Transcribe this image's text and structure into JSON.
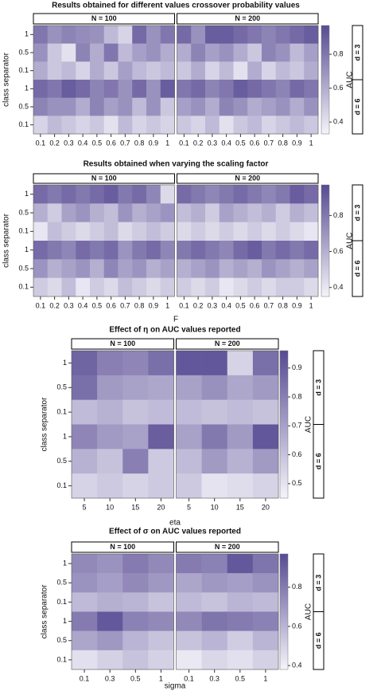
{
  "chart_data": [
    {
      "type": "heatmap",
      "title": "Results obtained for different values crossover probability values",
      "y_label": "class separator",
      "categories": [
        "0.1",
        "0.2",
        "0.3",
        "0.4",
        "0.5",
        "0.6",
        "0.7",
        "0.8",
        "0.9",
        "1"
      ],
      "rows": [
        "1",
        "0.5",
        "0.1",
        "1",
        "0.5",
        "0.1"
      ],
      "row_groups": [
        "d = 3",
        "d = 6"
      ],
      "colorbar_label": "AUC",
      "zlim": [
        0.33,
        0.97
      ],
      "zticks": [
        0.4,
        0.6,
        0.8
      ],
      "colors": [
        "#f5f4fa",
        "#574a93"
      ],
      "facets": [
        {
          "name": "N = 100",
          "values": [
            [
              0.8,
              0.7,
              0.75,
              0.72,
              0.7,
              0.55,
              0.45,
              0.85,
              0.7,
              0.8
            ],
            [
              0.7,
              0.5,
              0.4,
              0.75,
              0.6,
              0.8,
              0.55,
              0.65,
              0.7,
              0.6
            ],
            [
              0.6,
              0.5,
              0.55,
              0.45,
              0.6,
              0.5,
              0.65,
              0.55,
              0.5,
              0.55
            ],
            [
              0.85,
              0.8,
              0.9,
              0.85,
              0.75,
              0.8,
              0.7,
              0.85,
              0.7,
              0.9
            ],
            [
              0.75,
              0.7,
              0.7,
              0.6,
              0.75,
              0.65,
              0.7,
              0.55,
              0.7,
              0.5
            ],
            [
              0.45,
              0.55,
              0.5,
              0.45,
              0.5,
              0.4,
              0.55,
              0.45,
              0.5,
              0.45
            ]
          ]
        },
        {
          "name": "N = 200",
          "values": [
            [
              0.85,
              0.7,
              0.9,
              0.9,
              0.85,
              0.8,
              0.75,
              0.8,
              0.85,
              0.9
            ],
            [
              0.6,
              0.75,
              0.65,
              0.7,
              0.6,
              0.5,
              0.75,
              0.7,
              0.55,
              0.65
            ],
            [
              0.5,
              0.6,
              0.45,
              0.55,
              0.4,
              0.6,
              0.45,
              0.55,
              0.5,
              0.6
            ],
            [
              0.8,
              0.85,
              0.75,
              0.8,
              0.9,
              0.85,
              0.8,
              0.75,
              0.85,
              0.8
            ],
            [
              0.65,
              0.7,
              0.6,
              0.75,
              0.7,
              0.6,
              0.65,
              0.7,
              0.6,
              0.7
            ],
            [
              0.5,
              0.45,
              0.55,
              0.4,
              0.5,
              0.55,
              0.45,
              0.5,
              0.55,
              0.5
            ]
          ]
        }
      ]
    },
    {
      "type": "heatmap",
      "title": "Results obtained when varying the scaling factor",
      "x_label": "F",
      "y_label": "class separator",
      "categories": [
        "0.1",
        "0.2",
        "0.3",
        "0.4",
        "0.5",
        "0.6",
        "0.7",
        "0.8",
        "0.9",
        "1"
      ],
      "rows": [
        "1",
        "0.5",
        "0.1",
        "1",
        "0.5",
        "0.1"
      ],
      "row_groups": [
        "d = 3",
        "d = 6"
      ],
      "colorbar_label": "AUC",
      "zlim": [
        0.35,
        0.97
      ],
      "zticks": [
        0.4,
        0.6,
        0.8
      ],
      "colors": [
        "#f5f4fa",
        "#574a93"
      ],
      "facets": [
        {
          "name": "N = 100",
          "values": [
            [
              0.85,
              0.8,
              0.85,
              0.8,
              0.85,
              0.9,
              0.8,
              0.85,
              0.75,
              0.45
            ],
            [
              0.6,
              0.5,
              0.65,
              0.7,
              0.6,
              0.55,
              0.7,
              0.6,
              0.65,
              0.7
            ],
            [
              0.4,
              0.55,
              0.5,
              0.45,
              0.5,
              0.55,
              0.45,
              0.5,
              0.55,
              0.5
            ],
            [
              0.85,
              0.8,
              0.75,
              0.85,
              0.8,
              0.85,
              0.7,
              0.8,
              0.85,
              0.75
            ],
            [
              0.7,
              0.6,
              0.65,
              0.7,
              0.6,
              0.75,
              0.65,
              0.7,
              0.6,
              0.65
            ],
            [
              0.5,
              0.45,
              0.55,
              0.4,
              0.5,
              0.45,
              0.55,
              0.5,
              0.45,
              0.5
            ]
          ]
        },
        {
          "name": "N = 200",
          "values": [
            [
              0.85,
              0.8,
              0.75,
              0.8,
              0.85,
              0.8,
              0.75,
              0.8,
              0.9,
              0.85
            ],
            [
              0.55,
              0.6,
              0.5,
              0.65,
              0.6,
              0.55,
              0.6,
              0.5,
              0.6,
              0.55
            ],
            [
              0.45,
              0.5,
              0.45,
              0.5,
              0.45,
              0.5,
              0.45,
              0.5,
              0.45,
              0.4
            ],
            [
              0.8,
              0.85,
              0.8,
              0.75,
              0.85,
              0.9,
              0.8,
              0.85,
              0.8,
              0.85
            ],
            [
              0.6,
              0.65,
              0.7,
              0.6,
              0.65,
              0.6,
              0.7,
              0.65,
              0.6,
              0.65
            ],
            [
              0.5,
              0.45,
              0.5,
              0.4,
              0.45,
              0.5,
              0.45,
              0.5,
              0.5,
              0.45
            ]
          ]
        }
      ]
    },
    {
      "type": "heatmap",
      "title": "Effect of η on AUC values reported",
      "x_label": "eta",
      "y_label": "class separator",
      "categories": [
        "5",
        "10",
        "15",
        "20"
      ],
      "rows": [
        "1",
        "0.5",
        "0.1",
        "1",
        "0.5",
        "0.1"
      ],
      "row_groups": [
        "d = 3",
        "d = 6"
      ],
      "colorbar_label": "AUC",
      "zlim": [
        0.45,
        0.96
      ],
      "zticks": [
        0.5,
        0.6,
        0.7,
        0.8,
        0.9
      ],
      "colors": [
        "#f5f4fa",
        "#574a93"
      ],
      "facets": [
        {
          "name": "N = 100",
          "values": [
            [
              0.88,
              0.8,
              0.78,
              0.85
            ],
            [
              0.85,
              0.72,
              0.7,
              0.68
            ],
            [
              0.62,
              0.65,
              0.6,
              0.62
            ],
            [
              0.78,
              0.72,
              0.7,
              0.9
            ],
            [
              0.65,
              0.6,
              0.8,
              0.58
            ],
            [
              0.55,
              0.58,
              0.55,
              0.58
            ]
          ]
        },
        {
          "name": "N = 200",
          "values": [
            [
              0.92,
              0.92,
              0.55,
              0.85
            ],
            [
              0.7,
              0.75,
              0.68,
              0.72
            ],
            [
              0.62,
              0.6,
              0.62,
              0.6
            ],
            [
              0.7,
              0.82,
              0.72,
              0.92
            ],
            [
              0.62,
              0.72,
              0.65,
              0.72
            ],
            [
              0.58,
              0.5,
              0.52,
              0.55
            ]
          ]
        }
      ]
    },
    {
      "type": "heatmap",
      "title": "Effect of σ on AUC values reported",
      "x_label": "sigma",
      "y_label": "class separator",
      "categories": [
        "0.1",
        "0.3",
        "0.5",
        "1"
      ],
      "rows": [
        "1",
        "0.5",
        "0.1",
        "1",
        "0.5",
        "0.1"
      ],
      "row_groups": [
        "d = 3",
        "d = 6"
      ],
      "colorbar_label": "AUC",
      "zlim": [
        0.38,
        0.97
      ],
      "zticks": [
        0.4,
        0.6,
        0.8
      ],
      "colors": [
        "#f5f4fa",
        "#574a93"
      ],
      "facets": [
        {
          "name": "N = 100",
          "values": [
            [
              0.75,
              0.72,
              0.8,
              0.75
            ],
            [
              0.72,
              0.68,
              0.75,
              0.7
            ],
            [
              0.58,
              0.62,
              0.6,
              0.55
            ],
            [
              0.8,
              0.92,
              0.78,
              0.75
            ],
            [
              0.65,
              0.7,
              0.6,
              0.55
            ],
            [
              0.45,
              0.5,
              0.55,
              0.5
            ]
          ]
        },
        {
          "name": "N = 200",
          "values": [
            [
              0.8,
              0.78,
              0.92,
              0.82
            ],
            [
              0.65,
              0.7,
              0.68,
              0.72
            ],
            [
              0.58,
              0.55,
              0.6,
              0.58
            ],
            [
              0.75,
              0.82,
              0.8,
              0.78
            ],
            [
              0.55,
              0.6,
              0.52,
              0.6
            ],
            [
              0.42,
              0.48,
              0.45,
              0.5
            ]
          ]
        }
      ]
    }
  ]
}
